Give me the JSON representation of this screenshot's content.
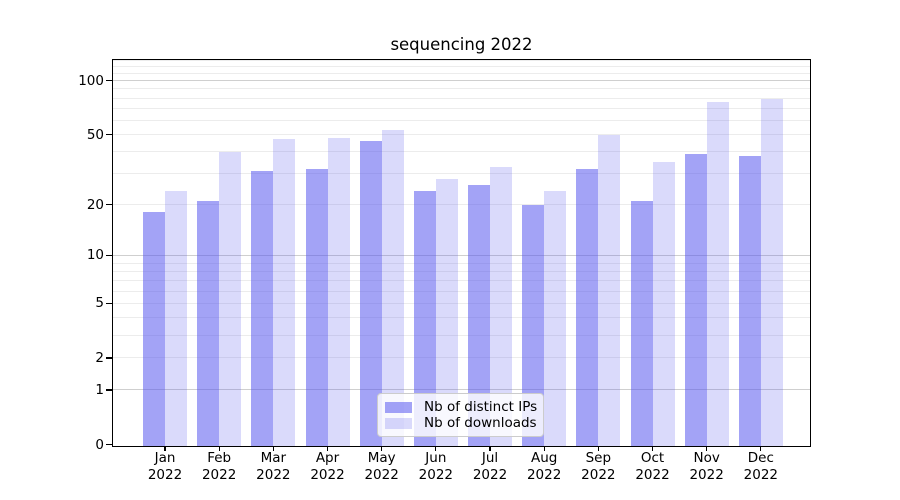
{
  "title": "sequencing 2022",
  "legend": {
    "items": [
      {
        "label": "Nb of distinct IPs",
        "series": "ips"
      },
      {
        "label": "Nb of downloads",
        "series": "downloads"
      }
    ]
  },
  "colors": {
    "bar_base": "#5858ee",
    "ips_bar_alpha": 0.55,
    "downloads_bar_alpha": 0.22,
    "ips_bar_solid": "#a3a3f1",
    "downloads_bar_solid": "#dadafb",
    "grid_major": "#cfcfcf",
    "grid_minor": "#ececec",
    "axis": "#000000",
    "text": "#000000"
  },
  "chart_data": {
    "type": "bar",
    "title": "sequencing 2022",
    "categories": [
      "Jan 2022",
      "Feb 2022",
      "Mar 2022",
      "Apr 2022",
      "May 2022",
      "Jun 2022",
      "Jul 2022",
      "Aug 2022",
      "Sep 2022",
      "Oct 2022",
      "Nov 2022",
      "Dec 2022"
    ],
    "x_tick_line1": [
      "Jan",
      "Feb",
      "Mar",
      "Apr",
      "May",
      "Jun",
      "Jul",
      "Aug",
      "Sep",
      "Oct",
      "Nov",
      "Dec"
    ],
    "x_tick_line2": "2022",
    "series": [
      {
        "name": "Nb of distinct IPs",
        "key": "ips",
        "values": [
          18,
          21,
          31,
          32,
          46,
          24,
          26,
          20,
          32,
          21,
          39,
          38
        ]
      },
      {
        "name": "Nb of downloads",
        "key": "downloads",
        "values": [
          24,
          40,
          47,
          48,
          53,
          28,
          33,
          24,
          50,
          35,
          76,
          79
        ]
      }
    ],
    "xlabel": "",
    "ylabel": "",
    "yscale": "symlog",
    "ylim": [
      0,
      130
    ],
    "y_labeled_ticks": [
      100,
      50,
      20,
      10,
      5,
      2,
      1,
      0
    ],
    "y_major_gridlines": [
      1,
      10,
      100
    ],
    "y_minor_gridlines": [
      2,
      3,
      4,
      5,
      6,
      7,
      8,
      9,
      20,
      30,
      40,
      50,
      60,
      70,
      80,
      90,
      110,
      120,
      130
    ],
    "grid": true,
    "legend_position": "lower center",
    "bar_group_total_width_fraction": 0.8
  }
}
